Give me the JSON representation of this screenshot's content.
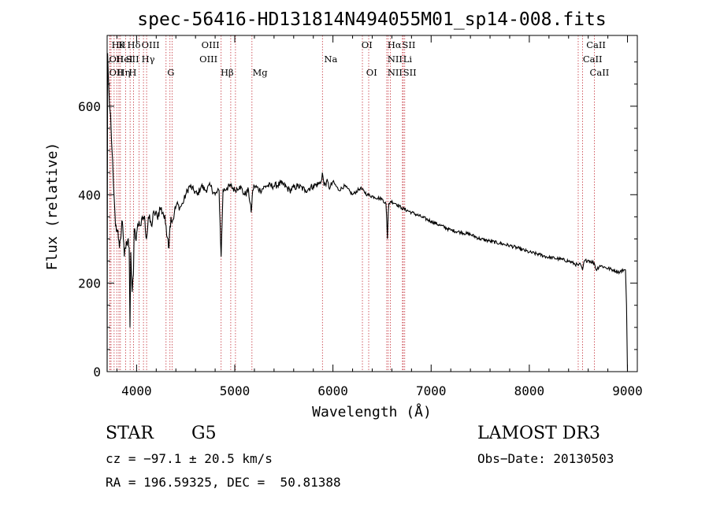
{
  "chart_data": {
    "type": "line",
    "title": "spec-56416-HD131814N494055M01_sp14-008.fits",
    "xlabel": "Wavelength (Å)",
    "ylabel": "Flux (relative)",
    "xlim": [
      3700,
      9100
    ],
    "ylim": [
      0,
      760
    ],
    "xticks": [
      4000,
      5000,
      6000,
      7000,
      8000,
      9000
    ],
    "yticks": [
      0,
      200,
      400,
      600
    ],
    "grid": false,
    "series": [
      {
        "name": "flux",
        "x": [
          3700,
          3705,
          3715,
          3725,
          3735,
          3745,
          3755,
          3765,
          3775,
          3785,
          3800,
          3815,
          3825,
          3835,
          3845,
          3855,
          3865,
          3875,
          3885,
          3900,
          3915,
          3925,
          3933,
          3941,
          3955,
          3968,
          3975,
          3990,
          4005,
          4025,
          4045,
          4070,
          4085,
          4101,
          4120,
          4150,
          4180,
          4210,
          4240,
          4270,
          4300,
          4320,
          4330,
          4340,
          4350,
          4365,
          4385,
          4410,
          4440,
          4470,
          4500,
          4540,
          4580,
          4620,
          4660,
          4700,
          4750,
          4800,
          4840,
          4861,
          4880,
          4920,
          4960,
          5000,
          5050,
          5100,
          5140,
          5167,
          5183,
          5200,
          5260,
          5320,
          5400,
          5480,
          5560,
          5640,
          5720,
          5800,
          5860,
          5880,
          5892,
          5910,
          5935,
          5970,
          6000,
          6060,
          6120,
          6200,
          6280,
          6350,
          6420,
          6500,
          6540,
          6555,
          6563,
          6570,
          6590,
          6640,
          6700,
          6800,
          6900,
          7000,
          7100,
          7200,
          7300,
          7400,
          7500,
          7600,
          7700,
          7800,
          7900,
          8000,
          8100,
          8200,
          8300,
          8400,
          8498,
          8510,
          8542,
          8560,
          8600,
          8662,
          8680,
          8720,
          8780,
          8850,
          8920,
          8960,
          8980,
          8990,
          9000
        ],
        "y": [
          0,
          720,
          650,
          600,
          580,
          520,
          480,
          420,
          380,
          330,
          320,
          300,
          280,
          300,
          320,
          340,
          300,
          260,
          280,
          290,
          300,
          280,
          100,
          270,
          180,
          220,
          320,
          300,
          320,
          340,
          330,
          350,
          340,
          300,
          350,
          330,
          360,
          350,
          370,
          360,
          330,
          300,
          280,
          330,
          350,
          340,
          360,
          380,
          370,
          380,
          400,
          420,
          410,
          400,
          420,
          410,
          420,
          400,
          410,
          260,
          410,
          415,
          420,
          410,
          420,
          400,
          410,
          360,
          410,
          420,
          410,
          420,
          420,
          425,
          410,
          420,
          410,
          420,
          425,
          430,
          450,
          420,
          430,
          415,
          430,
          410,
          420,
          400,
          415,
          400,
          395,
          390,
          380,
          300,
          360,
          380,
          385,
          380,
          370,
          360,
          350,
          340,
          330,
          320,
          315,
          310,
          300,
          295,
          290,
          285,
          278,
          270,
          265,
          258,
          255,
          250,
          240,
          245,
          230,
          250,
          252,
          245,
          230,
          240,
          235,
          230,
          225,
          230,
          230,
          150,
          0
        ]
      }
    ],
    "lines": [
      "Hθ",
      "K",
      "Hδ",
      "OIII",
      "OIII",
      "OI",
      "Hα",
      "SII",
      "CaII",
      "OII",
      "HeI",
      "SII",
      "Hγ",
      "OIII",
      "Na",
      "NII",
      "Li",
      "CaII",
      "OII",
      "Hη",
      "H",
      "G",
      "Hβ",
      "Mg",
      "OI",
      "NII",
      "SII",
      "CaII"
    ]
  },
  "info": {
    "obj_class": "STAR",
    "subclass": "G5",
    "survey": "LAMOST DR3",
    "cz": "cz = −97.1 ± 20.5 km/s",
    "obs_date": "Obs−Date: 20130503",
    "radec": "RA = 196.59325, DEC =  50.81388"
  }
}
